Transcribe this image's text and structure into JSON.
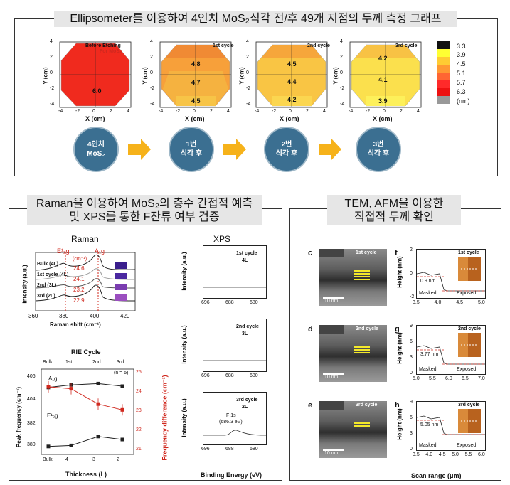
{
  "top": {
    "title": "Ellipsometer를 이용하여 4인치 MoS₂식각 전/후 49개 지점의 두께 측정 그래프",
    "maps": [
      {
        "label_line1": "Before Etching",
        "label_line2": "For MoS₂",
        "values": [
          "6.0"
        ]
      },
      {
        "label_line1": "1st cycle",
        "values": [
          "4.8",
          "4.7",
          "4.5"
        ]
      },
      {
        "label_line1": "2nd cycle",
        "values": [
          "4.5",
          "4.4",
          "4.2"
        ]
      },
      {
        "label_line1": "3rd cycle",
        "values": [
          "4.2",
          "4.1",
          "3.9"
        ]
      }
    ],
    "xlabel": "X (cm)",
    "ylabel": "Y (cm)",
    "x_ticks": [
      "-4",
      "-2",
      "0",
      "2",
      "4"
    ],
    "y_ticks": [
      "4",
      "2",
      "0",
      "-2",
      "-4"
    ],
    "colorbar": {
      "ticks": [
        "3.3",
        "3.9",
        "4.5",
        "5.1",
        "5.7",
        "6.3"
      ],
      "unit": "(nm)",
      "colors": [
        "#111111",
        "#ffff33",
        "#ffcc33",
        "#ff9933",
        "#ff6633",
        "#ff2a2a",
        "#ee1111",
        "#999999"
      ]
    },
    "steps": [
      {
        "line1": "4인치",
        "line2": "MoS₂"
      },
      {
        "line1": "1번",
        "line2": "식각 후"
      },
      {
        "line1": "2번",
        "line2": "식각 후"
      },
      {
        "line1": "3번",
        "line2": "식각 후"
      }
    ]
  },
  "raman": {
    "title_line1": "Raman을 이용하여 MoS₂의 층수 간접적 예측",
    "title_line2": "및 XPS를 통한 F잔류 여부 검증",
    "raman_title": "Raman",
    "peak1": "E¹₂g",
    "peak2": "A₁g",
    "unit": "(cm⁻¹)",
    "rows": [
      {
        "label": "Bulk (4L)",
        "diff": "24.6",
        "color": "#3a1e8c"
      },
      {
        "label": "1st cycle (4L)",
        "diff": "24.1",
        "color": "#4a28a0"
      },
      {
        "label": "2nd (3L)",
        "diff": "23.2",
        "color": "#7a3db0"
      },
      {
        "label": "3rd (2L)",
        "diff": "22.9",
        "color": "#9b4fc0"
      }
    ],
    "xlabel": "Raman shift (cm⁻¹)",
    "ylabel": "Intensity (a.u.)",
    "x_ticks": [
      "360",
      "380",
      "400",
      "420"
    ],
    "rie": {
      "top_title": "RIE Cycle",
      "top_ticks": [
        "Bulk",
        "1st",
        "2nd",
        "3rd"
      ],
      "n_label": "(n = 5)",
      "xlabel": "Thickness (L)",
      "ylabel_left": "Peak frequency (cm⁻¹)",
      "ylabel_right": "Frequency difference (cm⁻¹)",
      "x_ticks": [
        "Bulk",
        "4",
        "3",
        "2"
      ],
      "left_ticks_top": [
        "406",
        "404"
      ],
      "left_ticks_bottom": [
        "382",
        "380"
      ],
      "right_ticks": [
        "25",
        "24",
        "23",
        "22",
        "21"
      ],
      "a1g_label": "A₁g",
      "e2g_label": "E¹₂g",
      "a1g": [
        405.5,
        405.7,
        405.8,
        405.6
      ],
      "e2g": [
        381.3,
        381.4,
        382.3,
        382.0
      ],
      "diff": [
        24.3,
        24.2,
        23.4,
        23.1
      ]
    }
  },
  "xps": {
    "title": "XPS",
    "panels": [
      {
        "cycle": "1st cycle",
        "layers": "4L"
      },
      {
        "cycle": "2nd cycle",
        "layers": "3L"
      },
      {
        "cycle": "3rd cycle",
        "layers": "2L",
        "peak": "F 1s",
        "peak_value": "(686.3 eV)"
      }
    ],
    "ylabel": "Intensity (a.u.)",
    "xlabel": "Binding Energy (eV)",
    "x_ticks": [
      "696",
      "688",
      "680"
    ]
  },
  "tem": {
    "title_line1": "TEM, AFM을 이용한",
    "title_line2": "직접적 두께 확인",
    "panels": [
      {
        "letter": "c",
        "cycle": "1st cycle",
        "scale": "10 nm"
      },
      {
        "letter": "d",
        "cycle": "2nd cycle",
        "scale": "10 nm"
      },
      {
        "letter": "e",
        "cycle": "3rd cycle",
        "scale": "10 nm"
      }
    ],
    "afm": [
      {
        "letter": "f",
        "cycle": "1st cycle",
        "step": "0.9 nm",
        "y_ticks": [
          "2",
          "0",
          "-2"
        ],
        "x_ticks": [
          "3.5",
          "4.0",
          "4.5",
          "5.0"
        ]
      },
      {
        "letter": "g",
        "cycle": "2nd cycle",
        "step": "3.77 nm",
        "y_ticks": [
          "9",
          "6",
          "3",
          "0"
        ],
        "x_ticks": [
          "5.0",
          "5.5",
          "6.0",
          "6.5",
          "7.0"
        ]
      },
      {
        "letter": "h",
        "cycle": "3rd cycle",
        "step": "5.05 nm",
        "y_ticks": [
          "9",
          "6",
          "3",
          "0"
        ],
        "x_ticks": [
          "3.5",
          "4.0",
          "4.5",
          "5.0",
          "5.5",
          "6.0"
        ]
      }
    ],
    "masked": "Masked",
    "exposed": "Exposed",
    "ylabel": "Height (nm)",
    "xlabel": "Scan range (μm)"
  }
}
